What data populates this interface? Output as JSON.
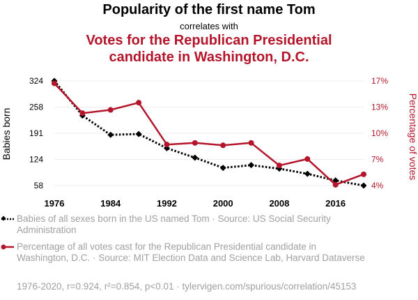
{
  "chart_data": {
    "type": "line",
    "title": "Popularity of the first name Tom",
    "connector": "correlates with",
    "subtitle": "Votes for the Republican Presidential candidate in Washington, D.C.",
    "x": [
      1976,
      1980,
      1984,
      1988,
      1992,
      1996,
      2000,
      2004,
      2008,
      2012,
      2016,
      2020
    ],
    "x_ticks": [
      "1976",
      "1984",
      "1992",
      "2000",
      "2008",
      "2016"
    ],
    "xlim": [
      1976,
      2020
    ],
    "y_left": {
      "label": "Babies born",
      "ticks": [
        "324",
        "258",
        "191",
        "124",
        "58"
      ],
      "range": [
        58,
        324
      ]
    },
    "y_right": {
      "label": "Percentage of votes",
      "ticks": [
        "17%",
        "13%",
        "10%",
        "7%",
        "4%"
      ],
      "range": [
        4,
        17
      ]
    },
    "series": [
      {
        "name": "Babies of all sexes born in the US named Tom",
        "axis": "left",
        "color": "#000000",
        "style": "dotted",
        "marker": "diamond",
        "values": [
          324,
          236,
          187,
          189,
          153,
          129,
          103,
          110,
          101,
          88,
          71,
          58
        ]
      },
      {
        "name": "Percentage of all votes cast for the Republican Presidential candidate in Washington, D.C.",
        "axis": "right",
        "color": "#b5152a",
        "style": "solid",
        "marker": "circle",
        "values": [
          16.7,
          13.0,
          13.4,
          14.3,
          9.1,
          9.3,
          9.0,
          9.3,
          6.5,
          7.3,
          4.1,
          5.4
        ]
      }
    ],
    "legend": [
      "Babies of all sexes born in the US named Tom · Source: US Social Security Administration",
      "Percentage of all votes cast for the Republican Presidential candidate in Washington, D.C. · Source: MIT Election Data and Science Lab, Harvard Dataverse"
    ],
    "footer": "1976-2020, r=0.924, r²=0.854, p<0.01 · tylervigen.com/spurious/correlation/45153"
  }
}
